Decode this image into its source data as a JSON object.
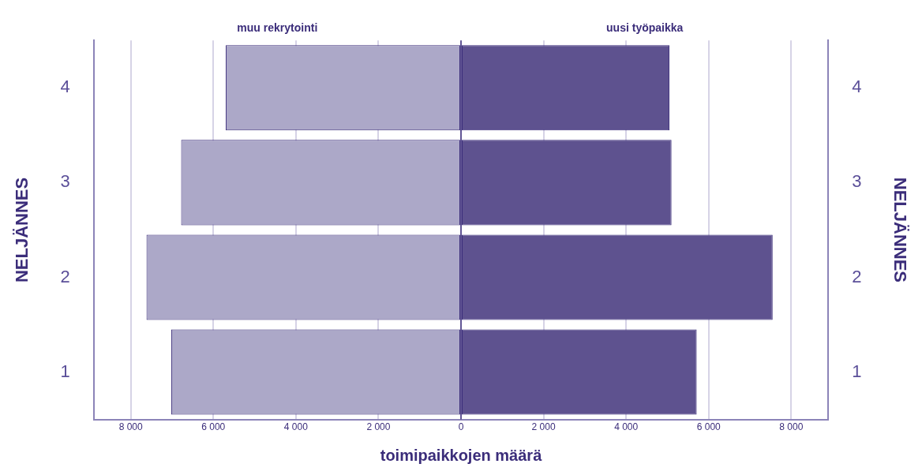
{
  "chart_data": {
    "type": "bar",
    "orientation": "horizontal",
    "stacked": true,
    "categories": [
      "4",
      "3",
      "2",
      "1"
    ],
    "series": [
      {
        "name": "muu rekrytointi",
        "color": "#aca8c8",
        "values": [
          -5700,
          -6780,
          -7620,
          -7020
        ]
      },
      {
        "name": "uusi työpaikka",
        "color": "#5e528f",
        "values": [
          5050,
          5100,
          7550,
          5710
        ]
      }
    ],
    "xlabel": "toimipaikkojen määrä",
    "ylabel": "NELJÄNNES",
    "y2label": "NELJÄNNES",
    "xlim": [
      -8900,
      8900
    ],
    "xticks": [
      {
        "value": -8000,
        "label": "8 000"
      },
      {
        "value": -6000,
        "label": "6 000"
      },
      {
        "value": -4000,
        "label": "4 000"
      },
      {
        "value": -2000,
        "label": "2 000"
      },
      0,
      {
        "value": 2000,
        "label": "2 000"
      },
      {
        "value": 4000,
        "label": "4 000"
      },
      {
        "value": 6000,
        "label": "6 000"
      },
      {
        "value": 8000,
        "label": "8 000"
      }
    ],
    "ref_lines": [
      {
        "axis": "x",
        "value": 0,
        "color": "#3b2d7a"
      }
    ],
    "grid": "x",
    "legend": false
  }
}
